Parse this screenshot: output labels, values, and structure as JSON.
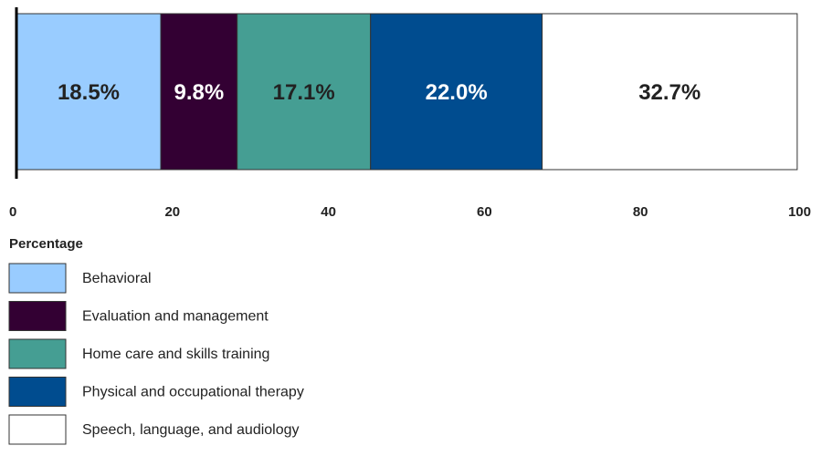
{
  "chart_data": {
    "type": "stacked-bar",
    "orientation": "horizontal",
    "x_label": "Percentage",
    "xlim": [
      0,
      100
    ],
    "xticks": [
      0,
      20,
      40,
      60,
      80,
      100
    ],
    "grid": false,
    "legend": "bottom-left",
    "series": [
      {
        "name": "Behavioral",
        "color": "#99ccff",
        "values": [
          18.5
        ],
        "value_labels": [
          "18.5%"
        ]
      },
      {
        "name": "Evaluation and management",
        "color": "#330033",
        "values": [
          9.8
        ],
        "value_labels": [
          "9.8%"
        ]
      },
      {
        "name": "Home care and skills training",
        "color": "#459e93",
        "values": [
          17.1
        ],
        "value_labels": [
          "17.1%"
        ]
      },
      {
        "name": "Physical and occupational therapy",
        "color": "#004c8f",
        "values": [
          22.0
        ],
        "value_labels": [
          "22.0%"
        ]
      },
      {
        "name": "Speech, language, and audiology",
        "color": "#ffffff",
        "values": [
          32.7
        ],
        "value_labels": [
          "32.7%"
        ]
      }
    ]
  }
}
